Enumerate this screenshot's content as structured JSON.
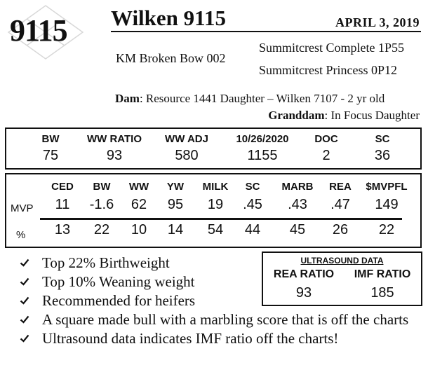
{
  "lot": {
    "number": "9115"
  },
  "header": {
    "name": "Wilken 9115",
    "birth_date": "APRIL  3, 2019"
  },
  "pedigree": {
    "sire": "KM Broken Bow 002",
    "sire_sire": "Summitcrest Complete 1P55",
    "sire_dam": "Summitcrest Princess 0P12",
    "dam_label": "Dam",
    "dam_value": ": Resource 1441 Daughter – Wilken 7107 - 2 yr old",
    "granddam_label": "Granddam",
    "granddam_value": ": In Focus Daughter"
  },
  "weights": {
    "columns": [
      {
        "label": "BW",
        "value": "75"
      },
      {
        "label": "WW RATIO",
        "value": "93"
      },
      {
        "label": "WW ADJ",
        "value": "580"
      },
      {
        "label": "10/26/2020",
        "value": "1155"
      },
      {
        "label": "DOC",
        "value": "2"
      },
      {
        "label": "SC",
        "value": "36"
      }
    ]
  },
  "epd": {
    "row_labels": {
      "mvp": "MVP",
      "percent": "%"
    },
    "columns": [
      {
        "label": "CED",
        "mvp": "11",
        "percent": "13"
      },
      {
        "label": "BW",
        "mvp": "-1.6",
        "percent": "22"
      },
      {
        "label": "WW",
        "mvp": "62",
        "percent": "10"
      },
      {
        "label": "YW",
        "mvp": "95",
        "percent": "14"
      },
      {
        "label": "MILK",
        "mvp": "19",
        "percent": "54"
      },
      {
        "label": "SC",
        "mvp": ".45",
        "percent": "44"
      },
      {
        "label": "MARB",
        "mvp": ".43",
        "percent": "45"
      },
      {
        "label": "REA",
        "mvp": ".47",
        "percent": "26"
      },
      {
        "label": "$MVPFL",
        "mvp": "149",
        "percent": "22"
      }
    ]
  },
  "ultrasound": {
    "title": "ULTRASOUND DATA",
    "rea_label": "REA RATIO",
    "rea_value": "93",
    "imf_label": "IMF RATIO",
    "imf_value": "185"
  },
  "highlights": [
    "Top 22% Birthweight",
    "Top 10% Weaning weight",
    "Recommended for heifers",
    "A square made bull with a marbling score that is off the charts",
    "Ultrasound data indicates IMF ratio off the charts!"
  ],
  "icons": {
    "bullet": "checkmark-icon",
    "lot_background": "diamond-outline-icon"
  }
}
